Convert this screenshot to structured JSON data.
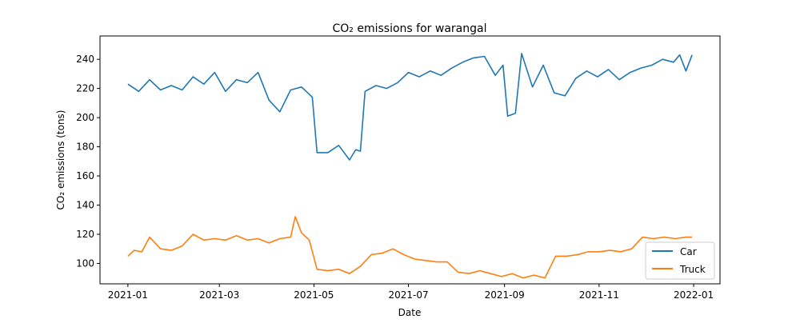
{
  "chart_data": {
    "type": "line",
    "title": "CO₂ emissions for warangal",
    "xlabel": "Date",
    "ylabel": "CO₂ emissions (tons)",
    "xlim": [
      "2020-12-14",
      "2022-01-18"
    ],
    "ylim": [
      86,
      256
    ],
    "x_ticks": [
      "2021-01-01",
      "2021-03-01",
      "2021-05-01",
      "2021-07-01",
      "2021-09-01",
      "2021-11-01",
      "2022-01-01"
    ],
    "x_tick_labels": [
      "2021-01",
      "2021-03",
      "2021-05",
      "2021-07",
      "2021-09",
      "2021-11",
      "2022-01"
    ],
    "y_ticks": [
      100,
      120,
      140,
      160,
      180,
      200,
      220,
      240
    ],
    "y_tick_labels": [
      "100",
      "120",
      "140",
      "160",
      "180",
      "200",
      "220",
      "240"
    ],
    "grid": false,
    "legend": "lower-right",
    "series": [
      {
        "name": "Car",
        "color": "#1f77b4",
        "x": [
          "2021-01-01",
          "2021-01-08",
          "2021-01-15",
          "2021-01-22",
          "2021-01-29",
          "2021-02-05",
          "2021-02-12",
          "2021-02-19",
          "2021-02-26",
          "2021-03-05",
          "2021-03-12",
          "2021-03-19",
          "2021-03-26",
          "2021-04-02",
          "2021-04-09",
          "2021-04-16",
          "2021-04-23",
          "2021-04-30",
          "2021-05-03",
          "2021-05-10",
          "2021-05-17",
          "2021-05-24",
          "2021-05-28",
          "2021-05-31",
          "2021-06-03",
          "2021-06-10",
          "2021-06-17",
          "2021-06-24",
          "2021-07-01",
          "2021-07-08",
          "2021-07-15",
          "2021-07-22",
          "2021-07-29",
          "2021-08-05",
          "2021-08-12",
          "2021-08-19",
          "2021-08-26",
          "2021-08-31",
          "2021-09-03",
          "2021-09-08",
          "2021-09-12",
          "2021-09-19",
          "2021-09-26",
          "2021-10-03",
          "2021-10-10",
          "2021-10-17",
          "2021-10-24",
          "2021-10-31",
          "2021-11-07",
          "2021-11-14",
          "2021-11-21",
          "2021-11-28",
          "2021-12-05",
          "2021-12-12",
          "2021-12-19",
          "2021-12-23",
          "2021-12-27",
          "2021-12-31"
        ],
        "y": [
          223,
          218,
          226,
          219,
          222,
          219,
          228,
          223,
          231,
          218,
          226,
          224,
          231,
          212,
          204,
          219,
          221,
          214,
          176,
          176,
          181,
          171,
          178,
          177,
          218,
          222,
          220,
          224,
          231,
          228,
          232,
          229,
          234,
          238,
          241,
          242,
          229,
          236,
          201,
          203,
          244,
          221,
          236,
          217,
          215,
          227,
          232,
          228,
          233,
          226,
          231,
          234,
          236,
          240,
          238,
          243,
          232,
          243
        ]
      },
      {
        "name": "Truck",
        "color": "#ff7f0e",
        "x": [
          "2021-01-01",
          "2021-01-05",
          "2021-01-10",
          "2021-01-15",
          "2021-01-22",
          "2021-01-29",
          "2021-02-05",
          "2021-02-12",
          "2021-02-19",
          "2021-02-26",
          "2021-03-05",
          "2021-03-12",
          "2021-03-19",
          "2021-03-26",
          "2021-04-02",
          "2021-04-09",
          "2021-04-16",
          "2021-04-19",
          "2021-04-23",
          "2021-04-28",
          "2021-05-03",
          "2021-05-10",
          "2021-05-17",
          "2021-05-24",
          "2021-05-31",
          "2021-06-07",
          "2021-06-14",
          "2021-06-21",
          "2021-06-28",
          "2021-07-05",
          "2021-07-12",
          "2021-07-19",
          "2021-07-26",
          "2021-08-02",
          "2021-08-09",
          "2021-08-16",
          "2021-08-23",
          "2021-08-30",
          "2021-09-06",
          "2021-09-13",
          "2021-09-20",
          "2021-09-27",
          "2021-10-04",
          "2021-10-11",
          "2021-10-18",
          "2021-10-25",
          "2021-11-01",
          "2021-11-08",
          "2021-11-15",
          "2021-11-22",
          "2021-11-29",
          "2021-12-06",
          "2021-12-13",
          "2021-12-20",
          "2021-12-27",
          "2021-12-31"
        ],
        "y": [
          105,
          109,
          108,
          118,
          110,
          109,
          112,
          120,
          116,
          117,
          116,
          119,
          116,
          117,
          114,
          117,
          118,
          132,
          121,
          116,
          96,
          95,
          96,
          93,
          98,
          106,
          107,
          110,
          106,
          103,
          102,
          101,
          101,
          94,
          93,
          95,
          93,
          91,
          93,
          90,
          92,
          90,
          105,
          105,
          106,
          108,
          108,
          109,
          108,
          110,
          118,
          117,
          118,
          117,
          118,
          118
        ]
      }
    ]
  }
}
